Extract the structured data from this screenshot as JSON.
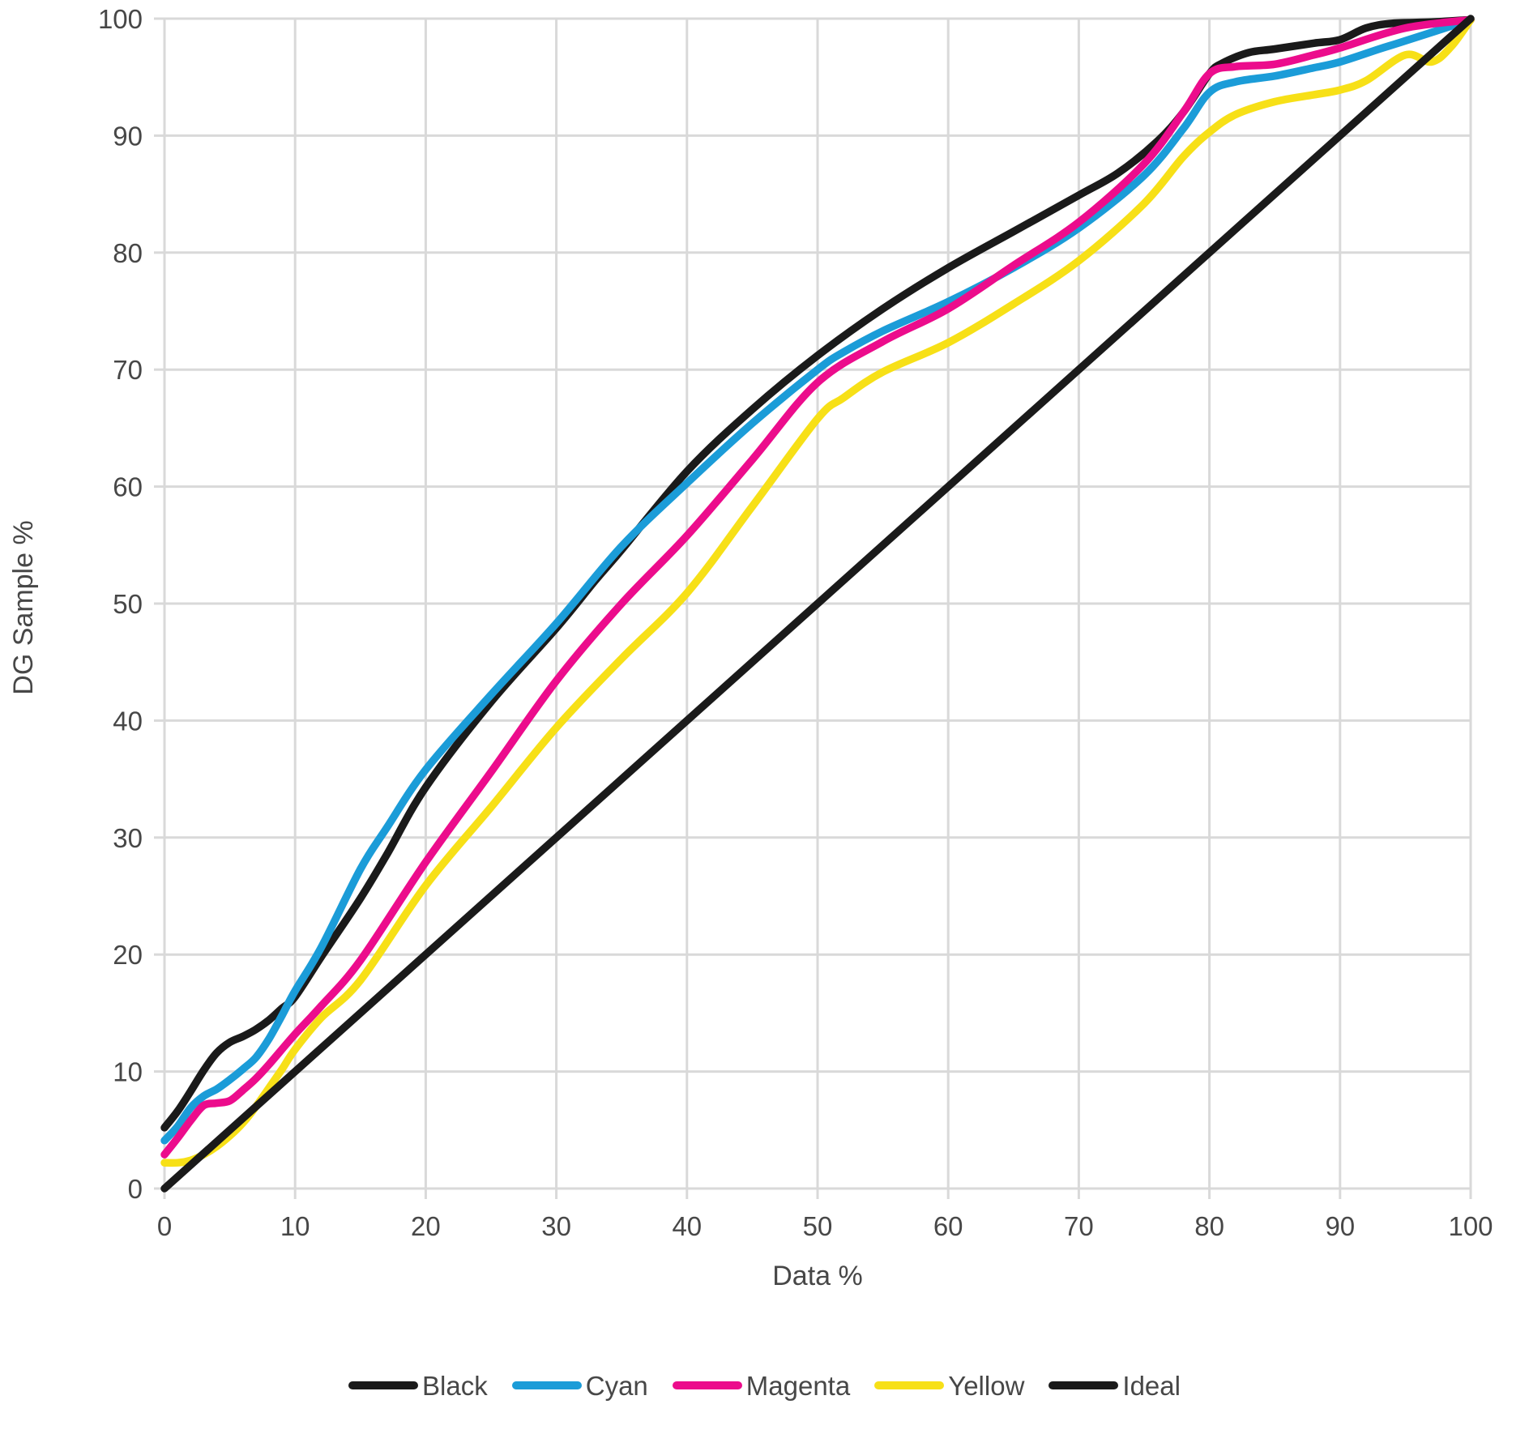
{
  "chart_data": {
    "type": "line",
    "title": "",
    "xlabel": "Data %",
    "ylabel": "DG Sample %",
    "xlim": [
      0,
      100
    ],
    "ylim": [
      0,
      100
    ],
    "x_ticks": [
      "0",
      "10",
      "20",
      "30",
      "40",
      "50",
      "60",
      "70",
      "80",
      "90",
      "100"
    ],
    "y_ticks": [
      "0",
      "10",
      "20",
      "30",
      "40",
      "50",
      "60",
      "70",
      "80",
      "90",
      "100"
    ],
    "grid": true,
    "grid_color": "#d9d9d9",
    "text_color": "#474747",
    "background_color": "#ffffff",
    "legend_position": "bottom",
    "series": [
      {
        "name": "Black",
        "color": "#1a1a1a",
        "points": [
          [
            0,
            5.2
          ],
          [
            1,
            6.6
          ],
          [
            2,
            8.3
          ],
          [
            3,
            10.1
          ],
          [
            4,
            11.6
          ],
          [
            5,
            12.5
          ],
          [
            6,
            13.0
          ],
          [
            7,
            13.6
          ],
          [
            8,
            14.4
          ],
          [
            9,
            15.4
          ],
          [
            10,
            16.4
          ],
          [
            12,
            19.8
          ],
          [
            15,
            24.8
          ],
          [
            17,
            28.5
          ],
          [
            20,
            34.3
          ],
          [
            25,
            41.6
          ],
          [
            30,
            47.9
          ],
          [
            33,
            52.0
          ],
          [
            35,
            54.6
          ],
          [
            40,
            61.3
          ],
          [
            45,
            66.6
          ],
          [
            50,
            71.2
          ],
          [
            55,
            75.2
          ],
          [
            60,
            78.7
          ],
          [
            65,
            81.8
          ],
          [
            70,
            84.9
          ],
          [
            73,
            86.8
          ],
          [
            76,
            89.5
          ],
          [
            78,
            92.0
          ],
          [
            80,
            95.3
          ],
          [
            81,
            96.2
          ],
          [
            83,
            97.1
          ],
          [
            85,
            97.4
          ],
          [
            88,
            97.9
          ],
          [
            90,
            98.2
          ],
          [
            92,
            99.2
          ],
          [
            94,
            99.6
          ],
          [
            97,
            99.7
          ],
          [
            100,
            99.9
          ]
        ]
      },
      {
        "name": "Cyan",
        "color": "#1b9cd8",
        "points": [
          [
            0,
            4.1
          ],
          [
            1,
            5.3
          ],
          [
            2,
            6.9
          ],
          [
            3,
            7.9
          ],
          [
            4,
            8.5
          ],
          [
            5,
            9.3
          ],
          [
            6,
            10.2
          ],
          [
            7,
            11.2
          ],
          [
            8,
            12.8
          ],
          [
            9,
            14.8
          ],
          [
            10,
            16.9
          ],
          [
            12,
            20.6
          ],
          [
            15,
            27.3
          ],
          [
            17,
            30.8
          ],
          [
            20,
            35.8
          ],
          [
            25,
            42.2
          ],
          [
            30,
            48.3
          ],
          [
            35,
            54.9
          ],
          [
            40,
            60.3
          ],
          [
            45,
            65.4
          ],
          [
            50,
            70.0
          ],
          [
            52,
            71.5
          ],
          [
            55,
            73.3
          ],
          [
            60,
            75.8
          ],
          [
            65,
            78.7
          ],
          [
            70,
            82.1
          ],
          [
            75,
            86.6
          ],
          [
            78,
            90.6
          ],
          [
            80,
            93.7
          ],
          [
            82,
            94.6
          ],
          [
            85,
            95.1
          ],
          [
            88,
            95.8
          ],
          [
            90,
            96.3
          ],
          [
            93,
            97.4
          ],
          [
            95,
            98.1
          ],
          [
            100,
            99.9
          ]
        ]
      },
      {
        "name": "Magenta",
        "color": "#ec0c8c",
        "points": [
          [
            0,
            2.9
          ],
          [
            1,
            4.3
          ],
          [
            2,
            5.8
          ],
          [
            3,
            7.1
          ],
          [
            4,
            7.3
          ],
          [
            5,
            7.5
          ],
          [
            6,
            8.4
          ],
          [
            7,
            9.4
          ],
          [
            8,
            10.6
          ],
          [
            10,
            13.2
          ],
          [
            12,
            15.6
          ],
          [
            15,
            19.5
          ],
          [
            20,
            27.9
          ],
          [
            25,
            35.6
          ],
          [
            30,
            43.4
          ],
          [
            35,
            50.0
          ],
          [
            40,
            55.8
          ],
          [
            45,
            62.3
          ],
          [
            50,
            68.9
          ],
          [
            55,
            72.4
          ],
          [
            60,
            75.2
          ],
          [
            65,
            78.9
          ],
          [
            70,
            82.6
          ],
          [
            75,
            87.6
          ],
          [
            78,
            92.0
          ],
          [
            80,
            95.3
          ],
          [
            82,
            95.9
          ],
          [
            85,
            96.1
          ],
          [
            88,
            96.9
          ],
          [
            90,
            97.5
          ],
          [
            95,
            99.2
          ],
          [
            100,
            99.9
          ]
        ]
      },
      {
        "name": "Yellow",
        "color": "#f7e017",
        "points": [
          [
            0,
            2.2
          ],
          [
            1,
            2.2
          ],
          [
            2,
            2.4
          ],
          [
            3,
            2.9
          ],
          [
            4,
            3.6
          ],
          [
            5,
            4.5
          ],
          [
            6,
            5.6
          ],
          [
            7,
            7.0
          ],
          [
            8,
            8.6
          ],
          [
            9,
            10.2
          ],
          [
            10,
            11.9
          ],
          [
            12,
            14.6
          ],
          [
            15,
            17.8
          ],
          [
            20,
            25.9
          ],
          [
            25,
            32.6
          ],
          [
            30,
            39.4
          ],
          [
            35,
            45.3
          ],
          [
            40,
            50.9
          ],
          [
            45,
            58.3
          ],
          [
            50,
            65.8
          ],
          [
            52,
            67.6
          ],
          [
            55,
            69.8
          ],
          [
            60,
            72.3
          ],
          [
            65,
            75.6
          ],
          [
            70,
            79.3
          ],
          [
            75,
            84.2
          ],
          [
            78,
            88.2
          ],
          [
            80,
            90.3
          ],
          [
            82,
            91.8
          ],
          [
            85,
            92.9
          ],
          [
            88,
            93.5
          ],
          [
            90,
            93.9
          ],
          [
            92,
            94.7
          ],
          [
            95,
            96.9
          ],
          [
            97,
            96.3
          ],
          [
            98.5,
            97.6
          ],
          [
            100,
            99.9
          ]
        ]
      },
      {
        "name": "Ideal",
        "color": "#1a1a1a",
        "points": [
          [
            0,
            0
          ],
          [
            100,
            100
          ]
        ]
      }
    ]
  }
}
